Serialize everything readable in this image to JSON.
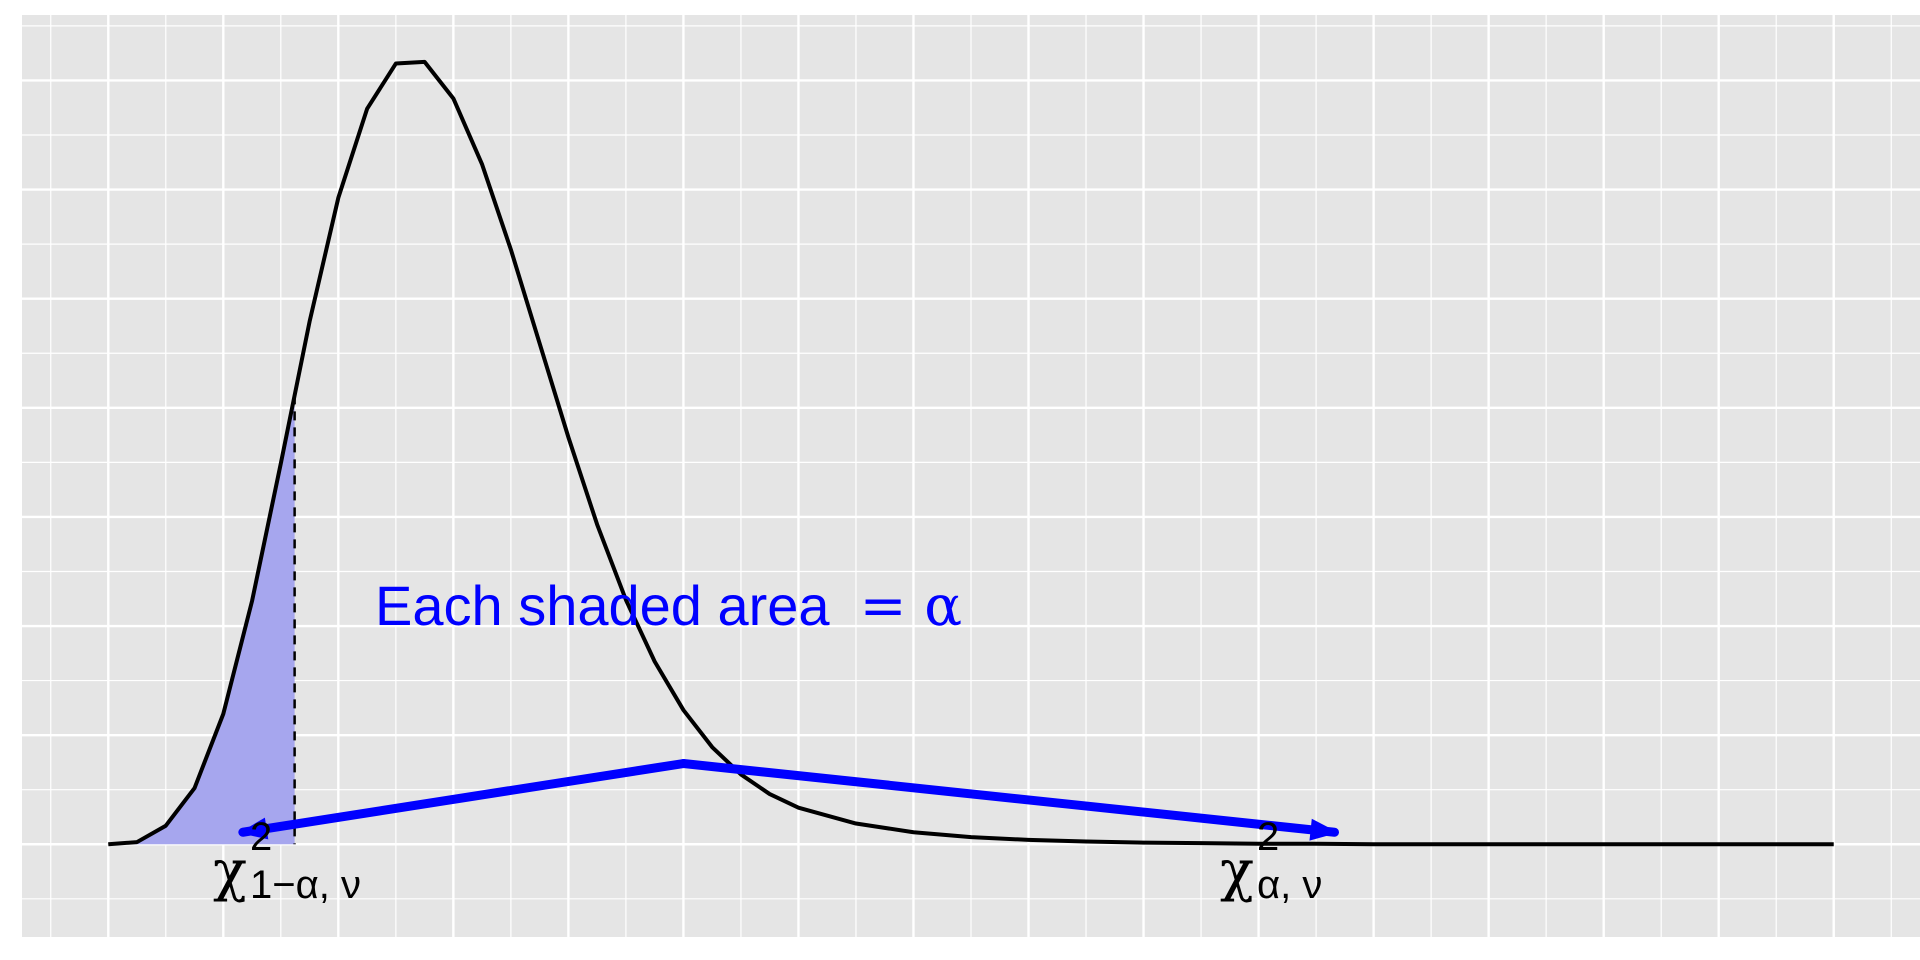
{
  "chart_data": {
    "type": "area",
    "distribution": "chi-square density",
    "x": [
      0,
      0.25,
      0.5,
      0.75,
      1,
      1.25,
      1.5,
      1.75,
      2,
      2.25,
      2.5,
      2.75,
      3,
      3.25,
      3.5,
      3.75,
      4,
      4.25,
      4.5,
      4.75,
      5,
      5.25,
      5.5,
      5.75,
      6,
      6.5,
      7,
      7.5,
      8,
      8.5,
      9,
      9.5,
      10,
      10.5,
      11,
      11.5,
      12,
      12.5,
      13,
      13.5,
      14,
      14.5,
      15
    ],
    "density": [
      0.0,
      0.0004,
      0.0034,
      0.0103,
      0.0239,
      0.0446,
      0.0698,
      0.0958,
      0.1185,
      0.1348,
      0.1431,
      0.1434,
      0.1367,
      0.1246,
      0.109,
      0.0918,
      0.0746,
      0.0586,
      0.0448,
      0.0335,
      0.0246,
      0.0178,
      0.0128,
      0.0092,
      0.0067,
      0.0038,
      0.0022,
      0.0013,
      0.0008,
      0.0005,
      0.0003,
      0.0002,
      0.0001,
      0.0001,
      0.0,
      0.0,
      0.0,
      0.0,
      0.0,
      0.0,
      0.0,
      0.0,
      0.0
    ],
    "lower_critical": 1.62,
    "upper_critical": 10.26,
    "shading_color": "#a6a6ee",
    "curve_color": "#000000",
    "annotation_color": "#0000ff",
    "annotation": {
      "text": "Each shaded area",
      "symbol": "= α"
    },
    "arrow_apex_x": 5,
    "lower_label": {
      "base": "χ",
      "superscript": "2",
      "subscript": "1−α, ν"
    },
    "upper_label": {
      "base": "χ",
      "superscript": "2",
      "subscript": "α, ν"
    },
    "grid": true,
    "background": "#e5e5e5",
    "xlim": [
      -0.75,
      15.75
    ],
    "ylim": [
      -0.017,
      0.152
    ]
  }
}
